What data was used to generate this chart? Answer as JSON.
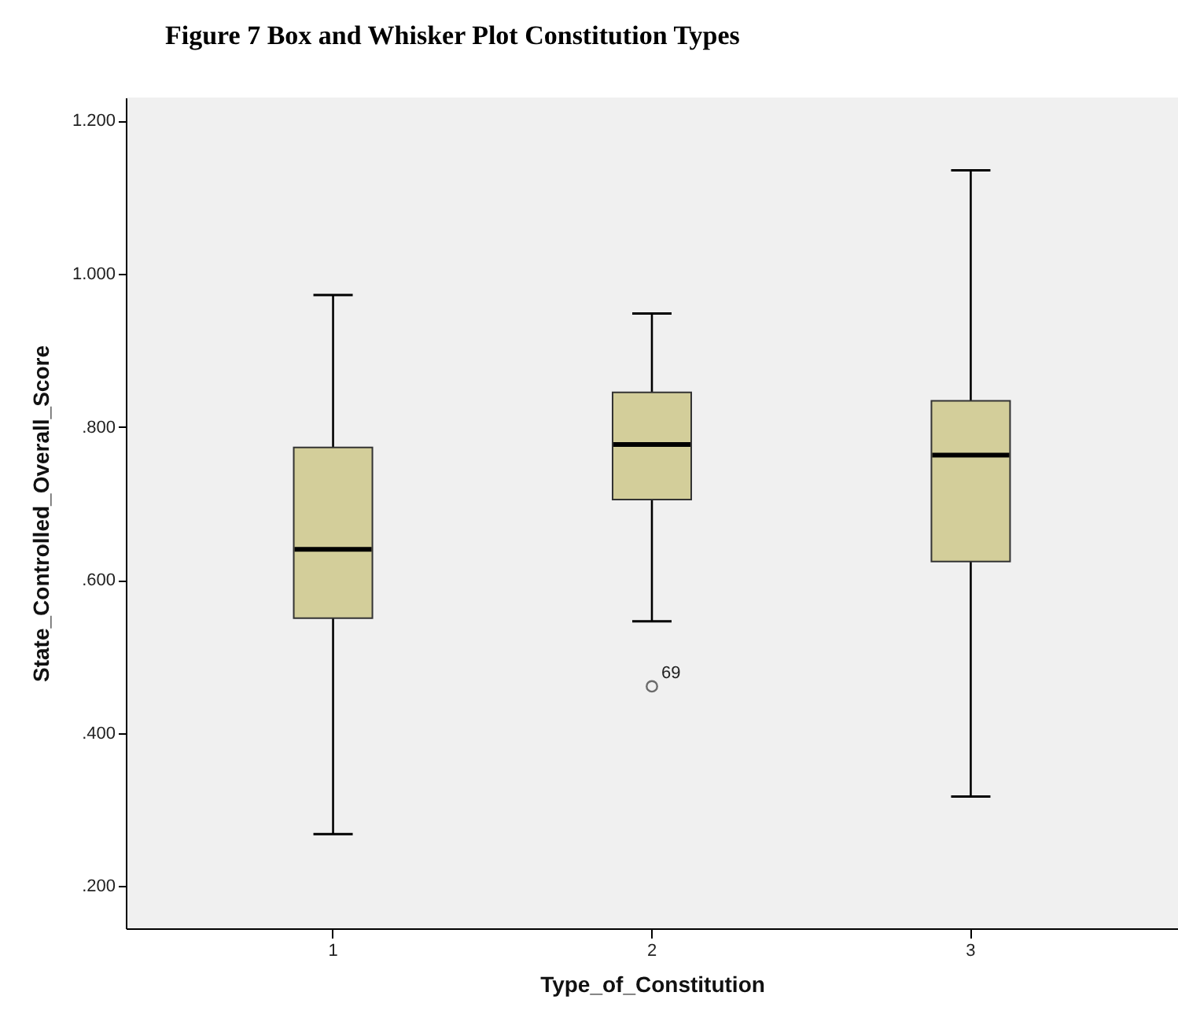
{
  "chart_data": {
    "type": "box",
    "title": "Figure 7 Box and Whisker Plot Constitution Types",
    "xlabel": "Type_of_Constitution",
    "ylabel": "State_Controlled_Overall_Score",
    "categories": [
      "1",
      "2",
      "3"
    ],
    "series": [
      {
        "color": "#d3ce9a",
        "boxes": [
          {
            "low": 0.268,
            "q1": 0.55,
            "median": 0.64,
            "q3": 0.773,
            "high": 0.972
          },
          {
            "low": 0.546,
            "q1": 0.705,
            "median": 0.777,
            "q3": 0.845,
            "high": 0.948,
            "outliers": [
              0.461
            ]
          },
          {
            "low": 0.317,
            "q1": 0.624,
            "median": 0.763,
            "q3": 0.834,
            "high": 1.135
          }
        ]
      }
    ],
    "ylim": [
      0.145,
      1.23
    ],
    "yticks": [
      {
        "value": 0.2,
        "label": ".200"
      },
      {
        "value": 0.4,
        "label": ".400"
      },
      {
        "value": 0.6,
        "label": ".600"
      },
      {
        "value": 0.8,
        "label": ".800"
      },
      {
        "value": 1.0,
        "label": "1.000"
      },
      {
        "value": 1.2,
        "label": "1.200"
      }
    ],
    "annotations": [
      "69"
    ]
  }
}
